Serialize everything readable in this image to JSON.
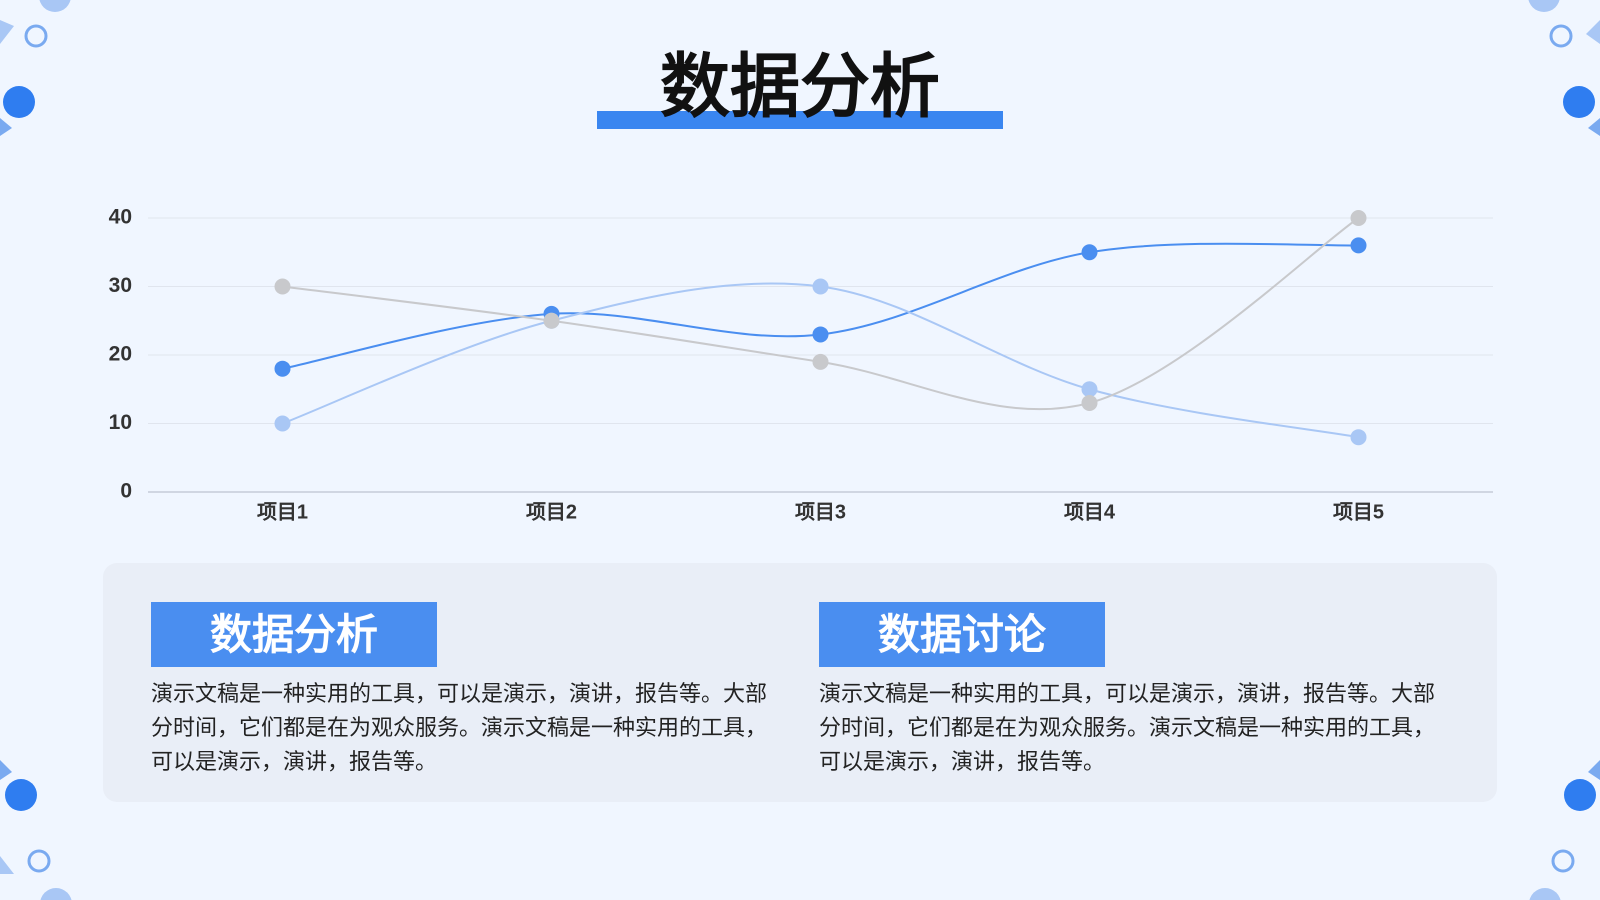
{
  "title": "数据分析",
  "chart_data": {
    "type": "line",
    "categories": [
      "项目1",
      "项目2",
      "项目3",
      "项目4",
      "项目5"
    ],
    "series": [
      {
        "color": "#4a8ef0",
        "values": [
          18,
          26,
          23,
          35,
          36
        ]
      },
      {
        "color": "#a9c7f5",
        "values": [
          10,
          25,
          30,
          15,
          8
        ]
      },
      {
        "color": "#c8c9cc",
        "values": [
          30,
          25,
          19,
          13,
          40
        ]
      }
    ],
    "ylim": [
      0,
      40
    ],
    "yticks": [
      0,
      10,
      20,
      30,
      40
    ],
    "grid": true,
    "smooth": true
  },
  "panels": [
    {
      "title": "数据分析",
      "text": "演示文稿是一种实用的工具，可以是演示，演讲，报告等。大部分时间，它们都是在为观众服务。演示文稿是一种实用的工具，可以是演示，演讲，报告等。"
    },
    {
      "title": "数据讨论",
      "text": "演示文稿是一种实用的工具，可以是演示，演讲，报告等。大部分时间，它们都是在为观众服务。演示文稿是一种实用的工具，可以是演示，演讲，报告等。"
    }
  ]
}
